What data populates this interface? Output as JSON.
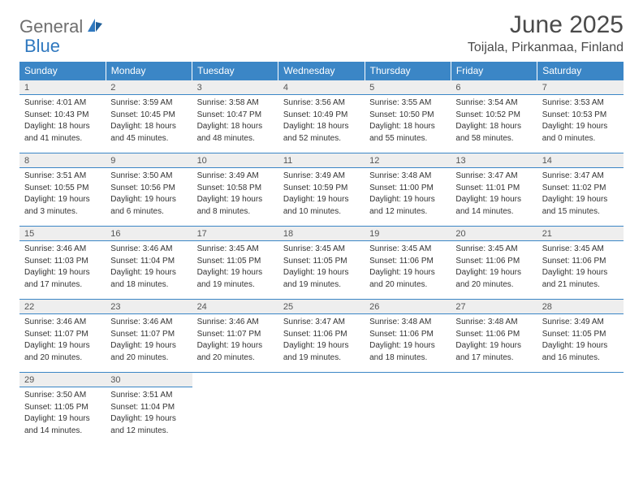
{
  "logo": {
    "part1": "General",
    "part2": "Blue"
  },
  "title": "June 2025",
  "location": "Toijala, Pirkanmaa, Finland",
  "colors": {
    "header_bg": "#3b86c6",
    "header_text": "#ffffff",
    "daynum_bg": "#eeeeee",
    "rule": "#3b86c6",
    "text": "#333333",
    "logo_gray": "#6f6f6f",
    "logo_blue": "#2f78bf"
  },
  "day_headers": [
    "Sunday",
    "Monday",
    "Tuesday",
    "Wednesday",
    "Thursday",
    "Friday",
    "Saturday"
  ],
  "weeks": [
    [
      {
        "n": "1",
        "sr": "Sunrise: 4:01 AM",
        "ss": "Sunset: 10:43 PM",
        "d1": "Daylight: 18 hours",
        "d2": "and 41 minutes."
      },
      {
        "n": "2",
        "sr": "Sunrise: 3:59 AM",
        "ss": "Sunset: 10:45 PM",
        "d1": "Daylight: 18 hours",
        "d2": "and 45 minutes."
      },
      {
        "n": "3",
        "sr": "Sunrise: 3:58 AM",
        "ss": "Sunset: 10:47 PM",
        "d1": "Daylight: 18 hours",
        "d2": "and 48 minutes."
      },
      {
        "n": "4",
        "sr": "Sunrise: 3:56 AM",
        "ss": "Sunset: 10:49 PM",
        "d1": "Daylight: 18 hours",
        "d2": "and 52 minutes."
      },
      {
        "n": "5",
        "sr": "Sunrise: 3:55 AM",
        "ss": "Sunset: 10:50 PM",
        "d1": "Daylight: 18 hours",
        "d2": "and 55 minutes."
      },
      {
        "n": "6",
        "sr": "Sunrise: 3:54 AM",
        "ss": "Sunset: 10:52 PM",
        "d1": "Daylight: 18 hours",
        "d2": "and 58 minutes."
      },
      {
        "n": "7",
        "sr": "Sunrise: 3:53 AM",
        "ss": "Sunset: 10:53 PM",
        "d1": "Daylight: 19 hours",
        "d2": "and 0 minutes."
      }
    ],
    [
      {
        "n": "8",
        "sr": "Sunrise: 3:51 AM",
        "ss": "Sunset: 10:55 PM",
        "d1": "Daylight: 19 hours",
        "d2": "and 3 minutes."
      },
      {
        "n": "9",
        "sr": "Sunrise: 3:50 AM",
        "ss": "Sunset: 10:56 PM",
        "d1": "Daylight: 19 hours",
        "d2": "and 6 minutes."
      },
      {
        "n": "10",
        "sr": "Sunrise: 3:49 AM",
        "ss": "Sunset: 10:58 PM",
        "d1": "Daylight: 19 hours",
        "d2": "and 8 minutes."
      },
      {
        "n": "11",
        "sr": "Sunrise: 3:49 AM",
        "ss": "Sunset: 10:59 PM",
        "d1": "Daylight: 19 hours",
        "d2": "and 10 minutes."
      },
      {
        "n": "12",
        "sr": "Sunrise: 3:48 AM",
        "ss": "Sunset: 11:00 PM",
        "d1": "Daylight: 19 hours",
        "d2": "and 12 minutes."
      },
      {
        "n": "13",
        "sr": "Sunrise: 3:47 AM",
        "ss": "Sunset: 11:01 PM",
        "d1": "Daylight: 19 hours",
        "d2": "and 14 minutes."
      },
      {
        "n": "14",
        "sr": "Sunrise: 3:47 AM",
        "ss": "Sunset: 11:02 PM",
        "d1": "Daylight: 19 hours",
        "d2": "and 15 minutes."
      }
    ],
    [
      {
        "n": "15",
        "sr": "Sunrise: 3:46 AM",
        "ss": "Sunset: 11:03 PM",
        "d1": "Daylight: 19 hours",
        "d2": "and 17 minutes."
      },
      {
        "n": "16",
        "sr": "Sunrise: 3:46 AM",
        "ss": "Sunset: 11:04 PM",
        "d1": "Daylight: 19 hours",
        "d2": "and 18 minutes."
      },
      {
        "n": "17",
        "sr": "Sunrise: 3:45 AM",
        "ss": "Sunset: 11:05 PM",
        "d1": "Daylight: 19 hours",
        "d2": "and 19 minutes."
      },
      {
        "n": "18",
        "sr": "Sunrise: 3:45 AM",
        "ss": "Sunset: 11:05 PM",
        "d1": "Daylight: 19 hours",
        "d2": "and 19 minutes."
      },
      {
        "n": "19",
        "sr": "Sunrise: 3:45 AM",
        "ss": "Sunset: 11:06 PM",
        "d1": "Daylight: 19 hours",
        "d2": "and 20 minutes."
      },
      {
        "n": "20",
        "sr": "Sunrise: 3:45 AM",
        "ss": "Sunset: 11:06 PM",
        "d1": "Daylight: 19 hours",
        "d2": "and 20 minutes."
      },
      {
        "n": "21",
        "sr": "Sunrise: 3:45 AM",
        "ss": "Sunset: 11:06 PM",
        "d1": "Daylight: 19 hours",
        "d2": "and 21 minutes."
      }
    ],
    [
      {
        "n": "22",
        "sr": "Sunrise: 3:46 AM",
        "ss": "Sunset: 11:07 PM",
        "d1": "Daylight: 19 hours",
        "d2": "and 20 minutes."
      },
      {
        "n": "23",
        "sr": "Sunrise: 3:46 AM",
        "ss": "Sunset: 11:07 PM",
        "d1": "Daylight: 19 hours",
        "d2": "and 20 minutes."
      },
      {
        "n": "24",
        "sr": "Sunrise: 3:46 AM",
        "ss": "Sunset: 11:07 PM",
        "d1": "Daylight: 19 hours",
        "d2": "and 20 minutes."
      },
      {
        "n": "25",
        "sr": "Sunrise: 3:47 AM",
        "ss": "Sunset: 11:06 PM",
        "d1": "Daylight: 19 hours",
        "d2": "and 19 minutes."
      },
      {
        "n": "26",
        "sr": "Sunrise: 3:48 AM",
        "ss": "Sunset: 11:06 PM",
        "d1": "Daylight: 19 hours",
        "d2": "and 18 minutes."
      },
      {
        "n": "27",
        "sr": "Sunrise: 3:48 AM",
        "ss": "Sunset: 11:06 PM",
        "d1": "Daylight: 19 hours",
        "d2": "and 17 minutes."
      },
      {
        "n": "28",
        "sr": "Sunrise: 3:49 AM",
        "ss": "Sunset: 11:05 PM",
        "d1": "Daylight: 19 hours",
        "d2": "and 16 minutes."
      }
    ],
    [
      {
        "n": "29",
        "sr": "Sunrise: 3:50 AM",
        "ss": "Sunset: 11:05 PM",
        "d1": "Daylight: 19 hours",
        "d2": "and 14 minutes."
      },
      {
        "n": "30",
        "sr": "Sunrise: 3:51 AM",
        "ss": "Sunset: 11:04 PM",
        "d1": "Daylight: 19 hours",
        "d2": "and 12 minutes."
      },
      null,
      null,
      null,
      null,
      null
    ]
  ]
}
